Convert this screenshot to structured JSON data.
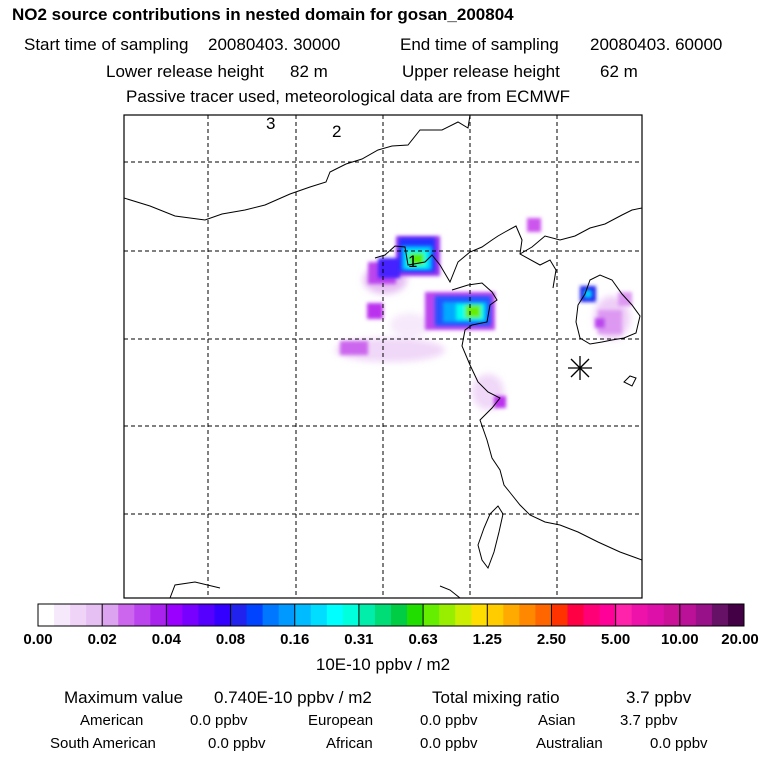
{
  "header": {
    "title": "NO2 source contributions in nested domain for gosan_200804",
    "start_label": "Start time of sampling",
    "start_value": "20080403. 30000",
    "end_label": "End time of sampling",
    "end_value": "20080403. 60000",
    "lower_label": "Lower release height",
    "lower_value": "82 m",
    "upper_label": "Upper release height",
    "upper_value": "62 m",
    "note": "Passive tracer used, meteorological data are from ECMWF"
  },
  "map": {
    "markers": [
      "3",
      "2",
      "1"
    ],
    "receptor": "gosan",
    "receptor-icon": "asterisk-icon"
  },
  "colorbar": {
    "ticks": [
      "0.00",
      "0.02",
      "0.04",
      "0.08",
      "0.16",
      "0.31",
      "0.63",
      "1.25",
      "2.50",
      "5.00",
      "10.00",
      "20.00"
    ],
    "colors": [
      "#ffffff",
      "#f6e9fb",
      "#efd4f7",
      "#e6bff3",
      "#dca4f0",
      "#cc66ee",
      "#bb44ee",
      "#aa22ee",
      "#9900ff",
      "#7700ff",
      "#5500ff",
      "#3300ff",
      "#2222ee",
      "#0044ff",
      "#0077ff",
      "#0099ff",
      "#00bbff",
      "#00ddff",
      "#00ffff",
      "#00ffdd",
      "#00eeaa",
      "#00dd77",
      "#00cc44",
      "#22dd00",
      "#66ee00",
      "#99ee00",
      "#ccee00",
      "#ffdd00",
      "#ffcc00",
      "#ffaa00",
      "#ff8800",
      "#ff6600",
      "#ff3300",
      "#ff0044",
      "#ff0077",
      "#ff0099",
      "#ff22aa",
      "#ee11aa",
      "#dd11aa",
      "#cc1199",
      "#bb1199",
      "#991188",
      "#661166",
      "#440044"
    ],
    "units": "10E-10 ppbv / m2"
  },
  "stats": {
    "max_label": "Maximum value",
    "max_value": "0.740E-10 ppbv / m2",
    "total_label": "Total mixing ratio",
    "total_value": "3.7 ppbv"
  },
  "regions": [
    {
      "name": "American",
      "value": "0.0 ppbv"
    },
    {
      "name": "European",
      "value": "0.0 ppbv"
    },
    {
      "name": "Asian",
      "value": "3.7 ppbv"
    },
    {
      "name": "South American",
      "value": "0.0 ppbv"
    },
    {
      "name": "African",
      "value": "0.0 ppbv"
    },
    {
      "name": "Australian",
      "value": "0.0 ppbv"
    }
  ]
}
